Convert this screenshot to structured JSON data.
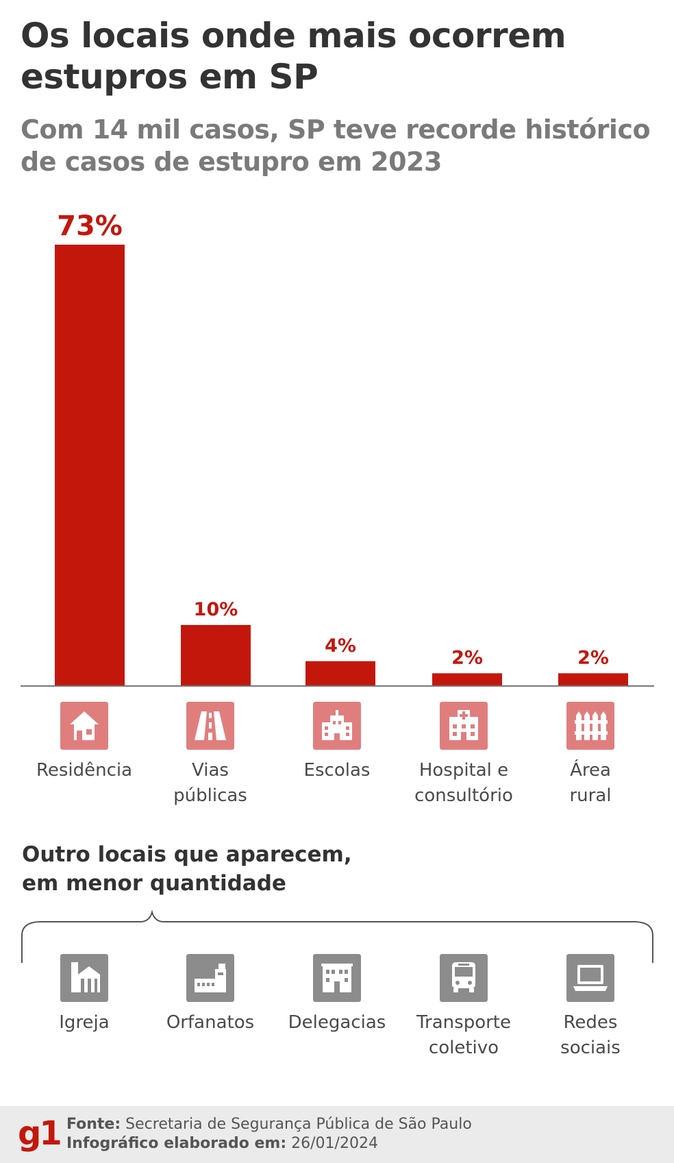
{
  "title": "Os locais onde mais ocorrem estupros em SP",
  "subtitle": "Com 14 mil casos, SP teve recorde histórico de casos de estupro em 2023",
  "colors": {
    "bar": "#c4170c",
    "icon_main": "#e07e7e",
    "icon_other": "#8c8c8c",
    "text_dark": "#333333",
    "text_gray": "#7a7a7a"
  },
  "chart_data": {
    "type": "bar",
    "title": "Os locais onde mais ocorrem estupros em SP",
    "categories": [
      "Residência",
      "Vias públicas",
      "Escolas",
      "Hospital e consultório",
      "Área rural"
    ],
    "values": [
      73,
      10,
      4,
      2,
      2
    ],
    "value_labels": [
      "73%",
      "10%",
      "4%",
      "2%",
      "2%"
    ],
    "unit": "%",
    "ylim": [
      0,
      73
    ],
    "grid": false,
    "legend": "none"
  },
  "main_categories": [
    {
      "label": "Residência",
      "icon": "house-icon"
    },
    {
      "label": "Vias\npúblicas",
      "icon": "road-icon"
    },
    {
      "label": "Escolas",
      "icon": "school-icon"
    },
    {
      "label": "Hospital e\nconsultório",
      "icon": "hospital-icon"
    },
    {
      "label": "Área\nrural",
      "icon": "fence-icon"
    }
  ],
  "other_title": "Outro locais que aparecem,\nem menor quantidade",
  "other_categories": [
    {
      "label": "Igreja",
      "icon": "church-icon"
    },
    {
      "label": "Orfanatos",
      "icon": "orphanage-icon"
    },
    {
      "label": "Delegacias",
      "icon": "police-station-icon"
    },
    {
      "label": "Transporte\ncoletivo",
      "icon": "bus-icon"
    },
    {
      "label": "Redes\nsociais",
      "icon": "laptop-icon"
    }
  ],
  "footer": {
    "logo": "g1",
    "source_label": "Fonte:",
    "source_text": "Secretaria de Segurança Pública de São Paulo",
    "date_label": "Infográfico elaborado em:",
    "date_text": "26/01/2024"
  }
}
